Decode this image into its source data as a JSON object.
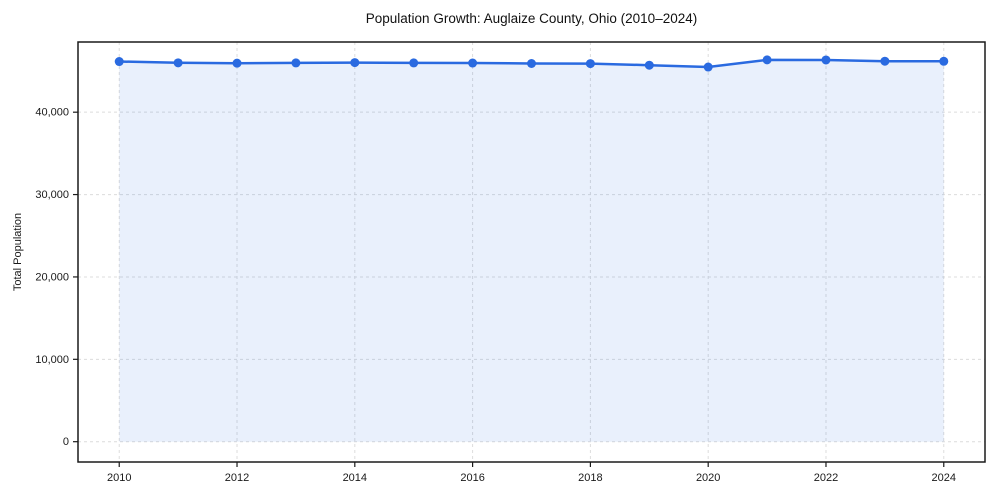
{
  "figure": {
    "title": "Population Growth: Auglaize County, Ohio (2010–2024)",
    "ylabel": "Total Population"
  },
  "chart_data": {
    "type": "line",
    "title": "Population Growth: Auglaize County, Ohio (2010–2024)",
    "xlabel": "",
    "ylabel": "Total Population",
    "x": [
      2010,
      2011,
      2012,
      2013,
      2014,
      2015,
      2016,
      2017,
      2018,
      2019,
      2020,
      2021,
      2022,
      2023,
      2024
    ],
    "series": [
      {
        "name": "Total Population",
        "values": [
          46150,
          45990,
          45950,
          45980,
          46020,
          45980,
          45970,
          45910,
          45900,
          45700,
          45480,
          46350,
          46340,
          46190,
          46180
        ]
      }
    ],
    "xticks": [
      2010,
      2012,
      2014,
      2016,
      2018,
      2020,
      2022,
      2024
    ],
    "yticks": [
      0,
      10000,
      20000,
      30000,
      40000
    ],
    "yticklabels": [
      "0",
      "10,000",
      "20,000",
      "30,000",
      "40,000"
    ],
    "xlim": [
      2009.3,
      2024.7
    ],
    "ylim": [
      -2465,
      48520
    ],
    "grid": true,
    "legend_position": "none",
    "area_baseline": 0,
    "line_color": "#2a6ae0",
    "fill_opacity": 0.1,
    "marker_radius": 4.5,
    "line_width": 2.5,
    "spine_color": "#1a1a1a",
    "grid_color": "#dcdcdc"
  }
}
